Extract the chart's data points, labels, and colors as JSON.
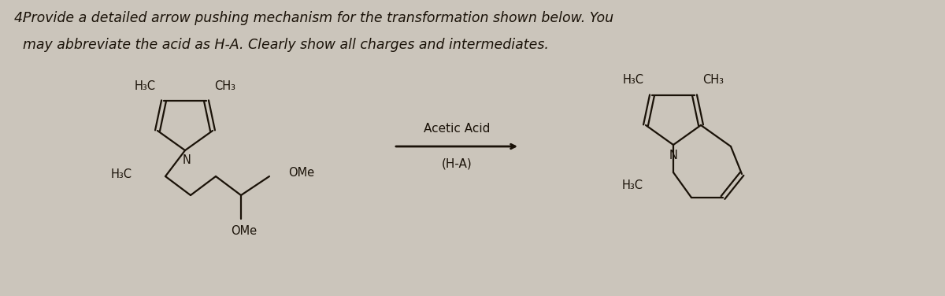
{
  "background_color": "#cbc5bb",
  "title_number": "4.",
  "title_text_line1": "  Provide a detailed arrow pushing mechanism for the transformation shown below. You",
  "title_text_line2": "  may abbreviate the acid as H-A. Clearly show all charges and intermediates.",
  "title_fontsize": 12.5,
  "reagent_line1": "Acetic Acid",
  "reagent_line2": "(H-A)",
  "reagent_fontsize": 11,
  "line_color": "#1a1208",
  "text_color": "#1a1208",
  "arrow_color": "#1a1208",
  "label_fontsize": 10.5
}
